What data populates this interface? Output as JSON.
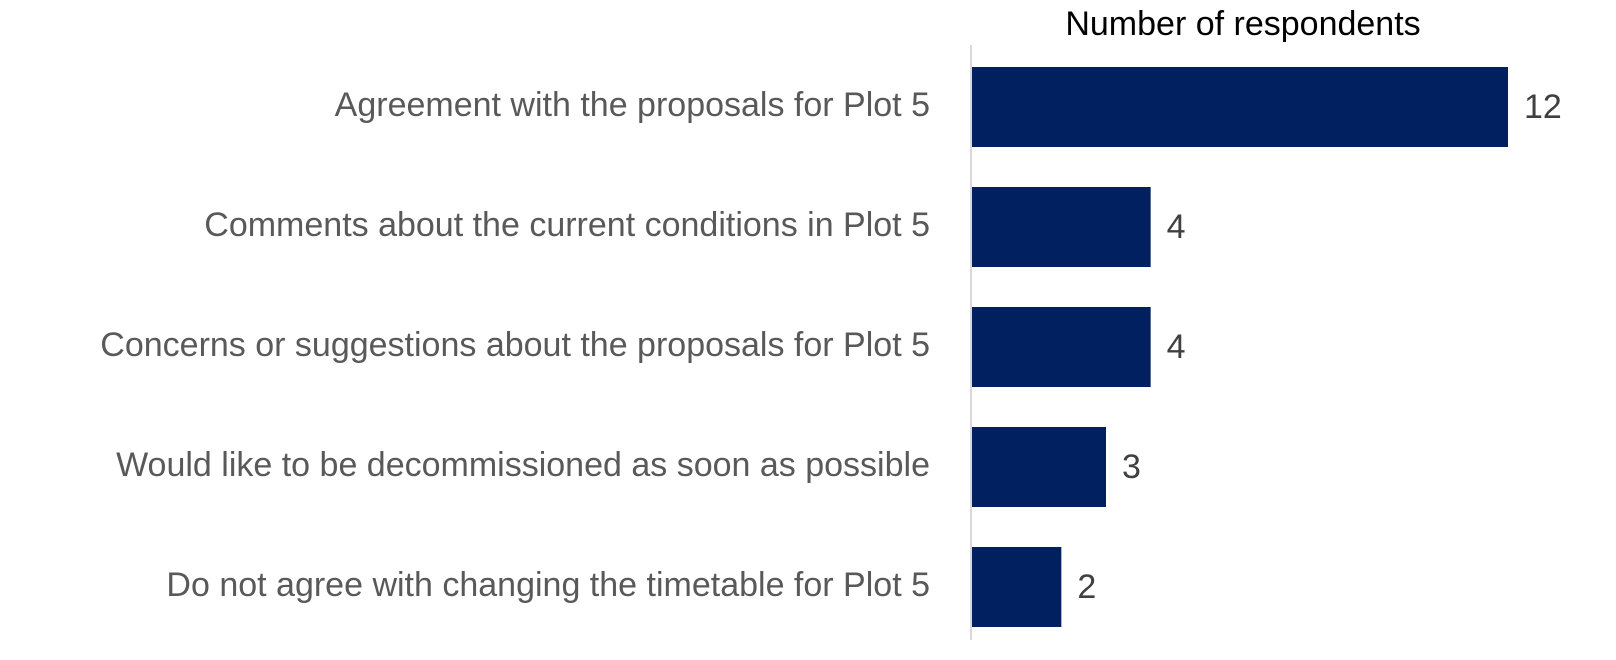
{
  "chart_data": {
    "type": "barh",
    "title": "Number of respondents",
    "categories": [
      "Agreement with the proposals for Plot 5",
      "Comments about the current conditions in Plot 5",
      "Concerns or suggestions about the proposals for Plot 5",
      "Would like to be decommissioned as soon as possible",
      "Do not agree with changing the timetable for Plot 5"
    ],
    "values": [
      12,
      4,
      4,
      3,
      2
    ],
    "color": "#002060"
  }
}
